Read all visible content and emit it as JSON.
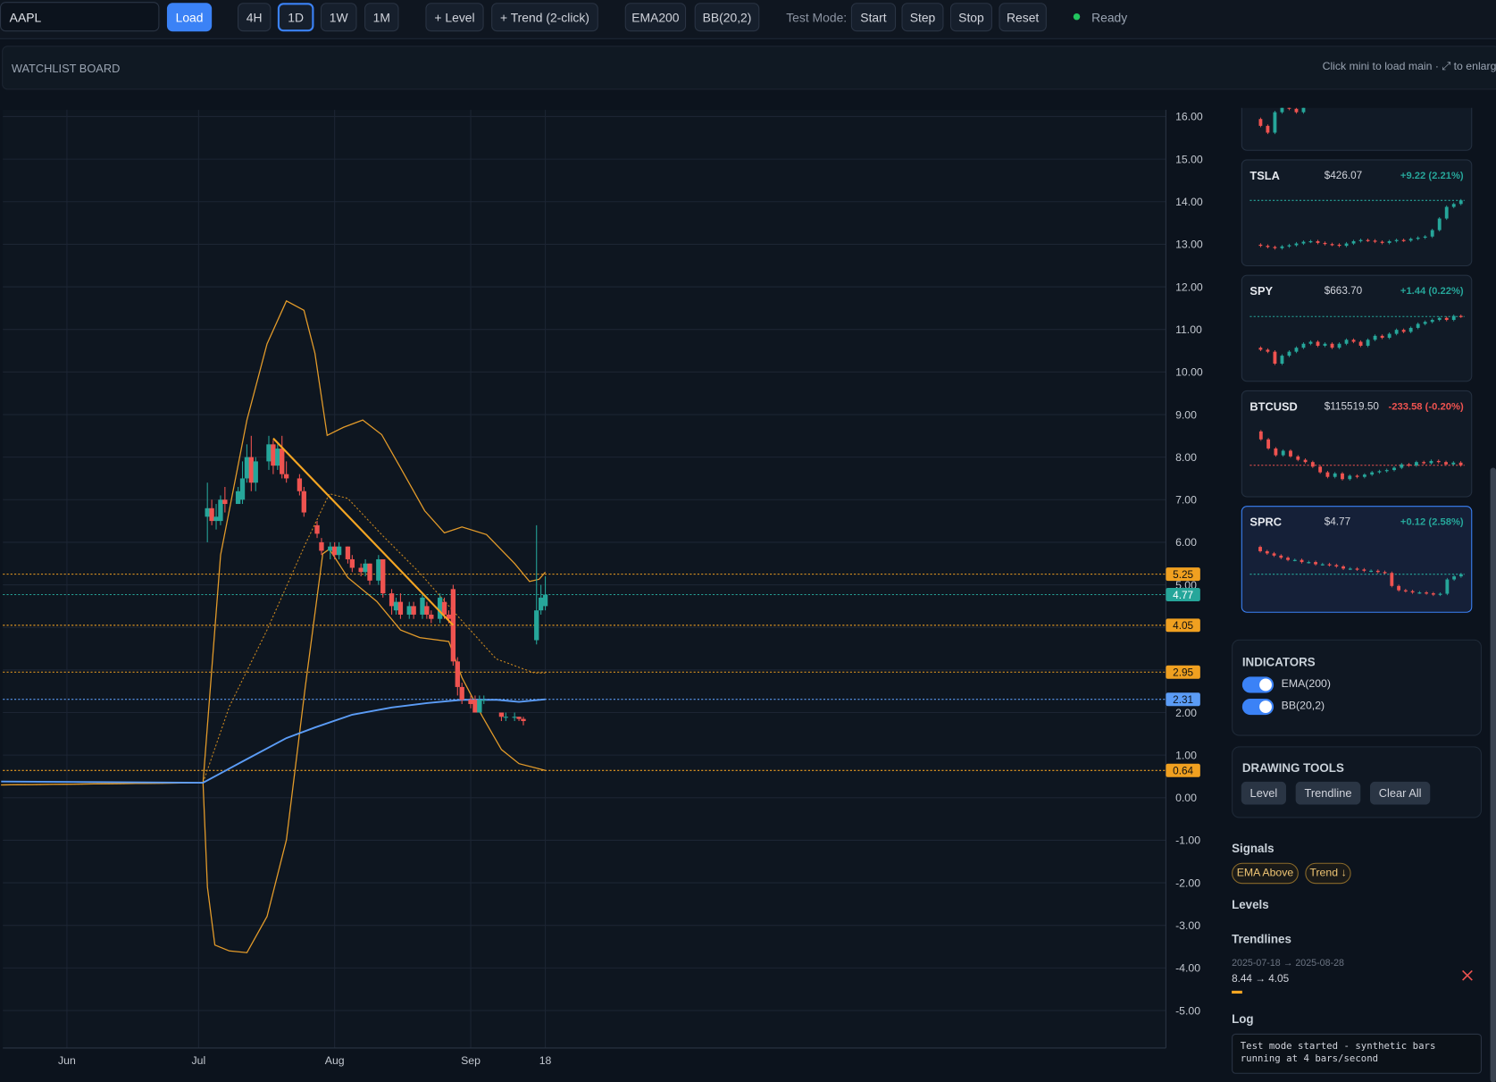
{
  "toolbar": {
    "symbol": "AAPL",
    "load": "Load",
    "timeframes": [
      "4H",
      "1D",
      "1W",
      "1M"
    ],
    "active_timeframe": "1D",
    "tools": [
      "+ Level",
      "+ Trend (2-click)"
    ],
    "indicators": [
      "EMA200",
      "BB(20,2)"
    ],
    "test_mode_label": "Test Mode:",
    "test_buttons": [
      "Start",
      "Step",
      "Stop",
      "Reset"
    ],
    "status": "Ready"
  },
  "watchlist": {
    "title": "WATCHLIST BOARD",
    "hint": "Click mini to load main · ⤢ to enlarge",
    "cards": [
      {
        "values": [
          5.2,
          5.1,
          5.0,
          5.3,
          5.4,
          5.35,
          5.3,
          5.45,
          5.5,
          5.4,
          5.45,
          5.5,
          5.45,
          5.4,
          5.5,
          5.55,
          5.5,
          5.6,
          5.55,
          5.5,
          5.6,
          5.55,
          5.5,
          5.6,
          5.55,
          5.6,
          5.65,
          5.6,
          5.65,
          5.7
        ]
      },
      {
        "symbol": "TSLA",
        "price": "$426.07",
        "change": "+9.22 (2.21%)",
        "change_color": "#26a69a",
        "values": [
          350,
          348,
          346,
          344,
          347,
          349,
          352,
          355,
          356,
          353,
          351,
          350,
          348,
          352,
          356,
          358,
          357,
          355,
          353,
          356,
          358,
          357,
          360,
          362,
          364,
          375,
          395,
          415,
          420,
          426.07
        ]
      },
      {
        "symbol": "SPY",
        "price": "$663.70",
        "change": "+1.44 (0.22%)",
        "change_color": "#26a69a",
        "values": [
          648,
          647,
          646,
          640,
          644,
          646,
          648,
          650,
          651,
          649,
          650,
          648,
          650,
          652,
          651,
          649,
          652,
          654,
          653,
          655,
          657,
          656,
          658,
          660,
          661,
          662,
          663,
          662,
          664,
          663.7
        ]
      },
      {
        "symbol": "BTCUSD",
        "price": "$115519.50",
        "change": "-233.58 (-0.20%)",
        "change_color": "#ef5350",
        "values": [
          118500,
          117800,
          117000,
          116400,
          116800,
          116300,
          116000,
          115800,
          115400,
          114900,
          114500,
          114800,
          114300,
          114600,
          114500,
          114700,
          114900,
          115000,
          115100,
          115300,
          115600,
          115500,
          115800,
          115700,
          115900,
          115800,
          115600,
          115753,
          115519.5
        ]
      },
      {
        "symbol": "SPRC",
        "price": "$4.77",
        "change": "+0.12 (2.58%)",
        "change_color": "#26a69a",
        "selected": true,
        "values": [
          5.4,
          5.3,
          5.25,
          5.2,
          5.15,
          5.1,
          5.1,
          5.05,
          5.05,
          5.0,
          5.0,
          4.98,
          4.95,
          4.9,
          4.9,
          4.88,
          4.85,
          4.85,
          4.82,
          4.8,
          4.5,
          4.4,
          4.38,
          4.35,
          4.35,
          4.33,
          4.3,
          4.32,
          4.65,
          4.72,
          4.77
        ]
      }
    ]
  },
  "chart_data": {
    "type": "candlestick",
    "colors": {
      "up": "#26a69a",
      "down": "#ef5350"
    },
    "x": [
      32,
      33,
      34,
      35,
      36,
      39,
      40,
      41,
      42,
      43,
      46,
      47,
      48,
      49,
      50,
      53,
      54,
      57,
      58,
      60,
      61,
      62,
      64,
      65,
      67,
      68,
      69,
      71,
      72,
      74,
      75,
      76,
      78,
      79,
      81,
      82,
      83,
      85,
      86,
      87,
      88,
      89,
      90,
      92,
      93,
      94,
      95,
      99,
      100,
      102,
      103,
      104,
      107,
      108,
      109
    ],
    "open": [
      6.6,
      6.8,
      6.5,
      6.5,
      7.0,
      6.9,
      7.0,
      7.5,
      8.0,
      7.4,
      7.9,
      8.3,
      7.8,
      8.2,
      7.6,
      7.5,
      7.2,
      6.4,
      6.0,
      5.8,
      5.9,
      5.7,
      5.9,
      5.6,
      5.4,
      5.3,
      5.5,
      5.1,
      5.6,
      4.8,
      4.4,
      4.6,
      4.3,
      4.5,
      4.3,
      4.5,
      4.3,
      4.2,
      4.6,
      4.3,
      4.9,
      3.2,
      2.6,
      2.3,
      2.3,
      2.0,
      2.3,
      2.0,
      1.9,
      1.9,
      1.9,
      1.85,
      3.7,
      4.4,
      4.5
    ],
    "high": [
      7.4,
      7.0,
      6.9,
      7.1,
      7.3,
      7.3,
      7.9,
      8.3,
      8.5,
      8.0,
      8.5,
      8.4,
      8.3,
      8.5,
      7.9,
      7.6,
      7.3,
      6.5,
      6.1,
      6.0,
      6.0,
      6.0,
      5.9,
      5.7,
      5.5,
      5.6,
      5.5,
      5.7,
      5.6,
      4.9,
      4.7,
      4.8,
      4.6,
      4.6,
      4.8,
      4.6,
      4.4,
      4.8,
      4.7,
      4.4,
      5.0,
      3.3,
      2.7,
      2.4,
      2.4,
      2.4,
      2.4,
      2.0,
      2.0,
      2.0,
      1.9,
      1.9,
      6.4,
      5.0,
      5.2
    ],
    "low": [
      6.0,
      6.4,
      6.3,
      6.4,
      6.7,
      6.9,
      6.9,
      7.4,
      7.2,
      7.2,
      7.7,
      7.6,
      7.7,
      7.5,
      7.4,
      7.1,
      6.6,
      6.1,
      5.7,
      5.6,
      5.6,
      5.6,
      5.5,
      5.3,
      5.2,
      5.2,
      5.0,
      5.0,
      4.7,
      4.3,
      4.3,
      4.2,
      4.2,
      4.2,
      4.2,
      4.2,
      4.1,
      4.1,
      4.2,
      4.1,
      3.1,
      2.4,
      2.2,
      2.1,
      2.0,
      2.0,
      2.2,
      1.8,
      1.8,
      1.8,
      1.8,
      1.7,
      3.6,
      4.3,
      4.4
    ],
    "close": [
      6.8,
      6.5,
      6.6,
      7.0,
      6.9,
      7.2,
      7.5,
      8.0,
      7.4,
      7.9,
      8.3,
      7.8,
      8.2,
      7.6,
      7.5,
      7.2,
      6.7,
      6.2,
      5.8,
      5.9,
      5.7,
      5.9,
      5.6,
      5.4,
      5.3,
      5.5,
      5.1,
      5.6,
      4.8,
      4.5,
      4.6,
      4.3,
      4.5,
      4.3,
      4.7,
      4.3,
      4.2,
      4.7,
      4.3,
      4.2,
      3.2,
      2.6,
      2.3,
      2.2,
      2.0,
      2.3,
      2.3,
      1.9,
      1.9,
      1.9,
      1.85,
      1.8,
      4.4,
      4.7,
      4.77
    ],
    "ema": {
      "color": "#5b9cf6",
      "x": [
        -15,
        31,
        40,
        50,
        56.5,
        65,
        74,
        82,
        90,
        98,
        103,
        109
      ],
      "values": [
        0.38,
        0.35,
        0.85,
        1.4,
        1.65,
        1.95,
        2.12,
        2.22,
        2.3,
        2.3,
        2.25,
        2.31
      ]
    },
    "bb_upper": {
      "color": "#e39b2a",
      "x": [
        -15,
        31,
        35,
        41,
        45.6,
        50,
        54,
        56.5,
        59.3,
        63,
        67.4,
        71.7,
        76,
        81.5,
        86,
        90,
        95.6,
        102,
        105.4,
        107.6,
        109
      ],
      "values": [
        0.3,
        0.35,
        5.7,
        8.87,
        10.66,
        11.67,
        11.45,
        10.44,
        8.51,
        8.7,
        8.87,
        8.53,
        7.75,
        6.74,
        6.22,
        6.36,
        6.18,
        5.5,
        5.08,
        5.13,
        5.3
      ]
    },
    "bb_lower": {
      "color": "#e39b2a",
      "x": [
        -15,
        31,
        32,
        33.7,
        37,
        41,
        45.6,
        50,
        54.3,
        58.3,
        59.8,
        64,
        70.6,
        76,
        80.4,
        87,
        90,
        94.6,
        99,
        103,
        109
      ],
      "values": [
        0.3,
        0.35,
        -2.1,
        -3.46,
        -3.6,
        -3.64,
        -2.79,
        -0.99,
        2.59,
        5.73,
        5.84,
        5.17,
        4.61,
        3.94,
        3.76,
        3.67,
        2.82,
        1.92,
        1.13,
        0.8,
        0.64
      ]
    },
    "bb_middle": {
      "color": "#c8861f",
      "x": [
        -15,
        31,
        37,
        45.6,
        54.3,
        59.8,
        64,
        71.7,
        80.4,
        89,
        97.8,
        106.5,
        109
      ],
      "values": [
        0.3,
        0.35,
        2.14,
        3.94,
        5.95,
        7.14,
        7.03,
        6.18,
        5.28,
        4.27,
        3.26,
        2.93,
        2.93
      ]
    },
    "trendline": {
      "color": "#f5a623",
      "x": [
        47,
        88
      ],
      "values": [
        8.44,
        4.05
      ]
    },
    "levels": {
      "color": "#f0a020",
      "values": [
        5.25,
        4.05,
        2.95,
        0.64
      ]
    },
    "last_price": {
      "color": "#26a69a",
      "value": 4.77
    },
    "xlim": [
      -14.6,
      250.4
    ],
    "xticks": [
      {
        "value": 0,
        "label": "Jun"
      },
      {
        "value": 30,
        "label": "Jul"
      },
      {
        "value": 61,
        "label": "Aug"
      },
      {
        "value": 92,
        "label": "Sep"
      },
      {
        "value": 109,
        "label": "18"
      }
    ],
    "ylim": [
      -5.88,
      16.16
    ],
    "yticks": [
      {
        "value": 16,
        "label": "16.00"
      },
      {
        "value": 15,
        "label": "15.00"
      },
      {
        "value": 14,
        "label": "14.00"
      },
      {
        "value": 13,
        "label": "13.00"
      },
      {
        "value": 12,
        "label": "12.00"
      },
      {
        "value": 11,
        "label": "11.00"
      },
      {
        "value": 10,
        "label": "10.00"
      },
      {
        "value": 9,
        "label": "9.00"
      },
      {
        "value": 8,
        "label": "8.00"
      },
      {
        "value": 7,
        "label": "7.00"
      },
      {
        "value": 6,
        "label": "6.00"
      },
      {
        "value": 5,
        "label": "5.00"
      },
      {
        "value": 4,
        "label": "4.00"
      },
      {
        "value": 3,
        "label": "3.00"
      },
      {
        "value": 2,
        "label": "2.00"
      },
      {
        "value": 1,
        "label": "1.00"
      },
      {
        "value": 0,
        "label": "0.00"
      },
      {
        "value": -1,
        "label": "-1.00"
      },
      {
        "value": -2,
        "label": "-2.00"
      },
      {
        "value": -3,
        "label": "-3.00"
      },
      {
        "value": -4,
        "label": "-4.00"
      },
      {
        "value": -5,
        "label": "-5.00"
      }
    ],
    "grid": true
  },
  "sidebar": {
    "indicators": {
      "title": "INDICATORS",
      "items": [
        {
          "label": "EMA(200)",
          "on": true
        },
        {
          "label": "BB(20,2)",
          "on": true
        }
      ]
    },
    "drawing_tools": {
      "title": "DRAWING TOOLS",
      "buttons": [
        "Level",
        "Trendline",
        "Clear All"
      ]
    },
    "signals": {
      "title": "Signals",
      "chips": [
        "EMA Above",
        "Trend ↓"
      ]
    },
    "levels": {
      "title": "Levels"
    },
    "trendlines": {
      "title": "Trendlines",
      "items": [
        {
          "dates": "2025-07-18 → 2025-08-28",
          "prices": "8.44 → 4.05"
        }
      ]
    },
    "log": {
      "title": "Log",
      "lines": [
        "Test mode started - synthetic bars running at 4 bars/second"
      ]
    }
  }
}
